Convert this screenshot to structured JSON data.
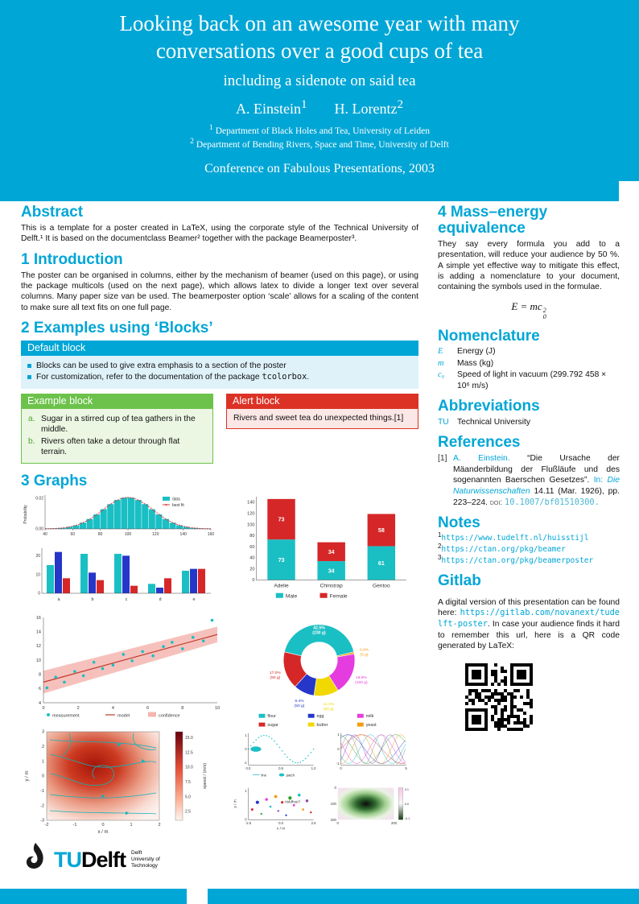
{
  "poster": {
    "header": {
      "title": "Looking back on an awesome year with many conversations over a good cups of tea",
      "subtitle": "including a sidenote on said tea",
      "author1": "A. Einstein",
      "author1_mark": "1",
      "author2": "H. Lorentz",
      "author2_mark": "2",
      "affil1_mark": "1",
      "affil1": "Department of Black Holes and Tea, University of Leiden",
      "affil2_mark": "2",
      "affil2": "Department of Bending Rivers, Space and Time, University of Delft",
      "conference": "Conference on Fabulous Presentations, 2003"
    },
    "abstract": {
      "title": "Abstract",
      "body": "This is a template for a poster created in LaTeX, using the corporate style of the Technical University of Delft.¹ It is based on the documentclass Beamer² together with the package Beamerposter³."
    },
    "introduction": {
      "title": "1 Introduction",
      "body": "The poster can be organised in columns, either by the mechanism of beamer (used on this page), or using the package multicols (used on the next page), which allows latex to divide a longer text over several columns. Many paper size van be used. The beamerposter option ‘scale’ allows for a scaling of the content to make sure all text fits on one full page."
    },
    "blocks": {
      "title": "2 Examples using ‘Blocks’",
      "default_block": {
        "title": "Default block",
        "item1": "Blocks can be used to give extra emphasis to a section of the poster",
        "item2_text": "For customization, refer to the documentation of the package ",
        "item2_code": "tcolorbox",
        "item2_suffix": "."
      },
      "example_block": {
        "title": "Example block",
        "item_a_label": "a.",
        "item_a": "Sugar in a stirred cup of tea gathers in the middle.",
        "item_b_label": "b.",
        "item_b": "Rivers often take a detour through flat terrain."
      },
      "alert_block": {
        "title": "Alert block",
        "body": "Rivers and sweet tea do unexpected things.[1]"
      }
    },
    "graphs": {
      "title": "3 Graphs"
    },
    "mass_energy": {
      "title": "4 Mass–energy equivalence",
      "body": "They say every formula you add to a presentation, will reduce your audience by 50 %. A simple yet effective way to mitigate this effect, is adding a nomenclature to your document, containing the symbols used in the formulae.",
      "formula_lhs": "E = mc",
      "formula_sup": "2",
      "formula_sub": "0"
    },
    "nomenclature": {
      "title": "Nomenclature",
      "rows": [
        {
          "symbol": "E",
          "definition": "Energy (J)"
        },
        {
          "symbol": "m",
          "definition": "Mass (kg)"
        },
        {
          "symbol": "c₀",
          "definition": "Speed of light in vacuum (299.792 458 × 10⁶ m/s)"
        }
      ]
    },
    "abbreviations": {
      "title": "Abbreviations",
      "rows": [
        {
          "abbr": "TU",
          "definition": "Technical University"
        }
      ]
    },
    "references": {
      "title": "References",
      "entries": [
        {
          "label": "[1]",
          "author": "A. Einstein.",
          "work": "“Die Ursache der Mäanderbildung der Flußläufe und des sogenannten Baerschen Gesetzes”.",
          "in_word": "In:",
          "journal": "Die Naturwissenschaften",
          "detail": "14.11 (Mar. 1926), pp. 223–224.",
          "doi_label": "doi:",
          "doi": "10.1007/bf01510300."
        }
      ]
    },
    "notes": {
      "title": "Notes",
      "items": [
        {
          "marker": "1",
          "url": "https://www.tudelft.nl/huisstijl"
        },
        {
          "marker": "2",
          "url": "https://ctan.org/pkg/beamer"
        },
        {
          "marker": "3",
          "url": "https://ctan.org/pkg/beamerposter"
        }
      ]
    },
    "gitlab": {
      "title": "Gitlab",
      "text_before": "A digital version of this presentation can be found here: ",
      "url": "https://gitlab.com/novanext/tudelft-poster",
      "text_after": ". In case your audience finds it hard to remember this url, here is a QR code generated by LaTeX:"
    },
    "logo": {
      "tu": "TU",
      "delft": "Delft",
      "tagline1": "Delft",
      "tagline2": "University of",
      "tagline3": "Technology"
    },
    "theme": {
      "accent": "#00A6D6",
      "green": "#6CC24A",
      "red": "#DC3226"
    }
  },
  "chart_data": [
    {
      "id": "histogram",
      "type": "bar",
      "ylabel": "Probability",
      "x_ticks": [
        40,
        60,
        80,
        100,
        120,
        140,
        160
      ],
      "y_ticks": [
        "0.00",
        "0.02"
      ],
      "legend": [
        "data",
        "best fit"
      ],
      "bin_start": 40,
      "bin_width": 5,
      "values": [
        0.0001,
        0.0003,
        0.0006,
        0.0013,
        0.0023,
        0.004,
        0.0064,
        0.0094,
        0.0128,
        0.0161,
        0.0188,
        0.0203,
        0.0203,
        0.0188,
        0.0161,
        0.0128,
        0.0094,
        0.0064,
        0.004,
        0.0023,
        0.0013,
        0.0006,
        0.0003,
        0.0001
      ],
      "mean": 100,
      "sigma": 18,
      "fit_peak": 0.0205,
      "ymax": 0.022,
      "colors": {
        "data": "#1abfc4",
        "fit": "#d62728"
      }
    },
    {
      "id": "grouped_bars",
      "type": "bar",
      "categories": [
        "a",
        "b",
        "c",
        "d",
        "e"
      ],
      "series": [
        {
          "name": "series1",
          "color": "#1abfc4",
          "values": [
            15,
            21,
            21,
            5,
            12
          ]
        },
        {
          "name": "series2",
          "color": "#2536c9",
          "values": [
            22,
            11,
            20,
            3,
            13
          ]
        },
        {
          "name": "series3",
          "color": "#d62728",
          "values": [
            8,
            7,
            4,
            8,
            13
          ]
        }
      ],
      "y_ticks": [
        0,
        10,
        20
      ],
      "ymax": 24
    },
    {
      "id": "penguins",
      "type": "bar",
      "stacked": true,
      "categories": [
        "Adelie",
        "Chinstrap",
        "Gentoo"
      ],
      "series": [
        {
          "name": "Male",
          "color": "#1abfc4",
          "values": [
            73,
            34,
            61
          ]
        },
        {
          "name": "Female",
          "color": "#d62728",
          "values": [
            73,
            34,
            58
          ]
        }
      ],
      "y_ticks": [
        0,
        20,
        40,
        60,
        80,
        100,
        120,
        140
      ],
      "ymax": 150
    },
    {
      "id": "regression",
      "type": "scatter",
      "xlim": [
        0,
        10
      ],
      "ylim": [
        4,
        16
      ],
      "x_ticks": [
        0,
        2,
        4,
        6,
        8,
        10
      ],
      "y_ticks": [
        4,
        6,
        8,
        10,
        12,
        14,
        16
      ],
      "legend": [
        "measurement",
        "model",
        "confidence"
      ],
      "points": [
        [
          0.2,
          6.1
        ],
        [
          0.7,
          7.6
        ],
        [
          1.2,
          6.9
        ],
        [
          1.8,
          8.4
        ],
        [
          2.3,
          7.8
        ],
        [
          2.9,
          9.7
        ],
        [
          3.4,
          8.8
        ],
        [
          4.0,
          9.3
        ],
        [
          4.6,
          10.8
        ],
        [
          5.1,
          9.9
        ],
        [
          5.7,
          11.2
        ],
        [
          6.3,
          10.6
        ],
        [
          6.9,
          11.9
        ],
        [
          7.4,
          12.5
        ],
        [
          8.0,
          11.6
        ],
        [
          8.6,
          13.2
        ],
        [
          9.2,
          12.7
        ],
        [
          9.7,
          15.6
        ]
      ],
      "model": [
        [
          0,
          6.9
        ],
        [
          10,
          13.6
        ]
      ],
      "band_halfwidth_start": 1.6,
      "band_halfwidth_end": 1.1,
      "colors": {
        "points": "#1abfc4",
        "line": "#c0392b",
        "band": "#f4b6b0"
      }
    },
    {
      "id": "ingredients",
      "type": "pie",
      "slices": [
        {
          "label": "flour",
          "pct": 42.5,
          "grams": 230,
          "color": "#1abfc4"
        },
        {
          "label": "yeast",
          "pct": 0.9,
          "grams": 5,
          "color": "#f39c12"
        },
        {
          "label": "milk",
          "pct": 18.9,
          "grams": 100,
          "color": "#e53ce0"
        },
        {
          "label": "butter",
          "pct": 11.3,
          "grams": 60,
          "color": "#f1d800"
        },
        {
          "label": "egg",
          "pct": 9.4,
          "grams": 50,
          "color": "#2536c9"
        },
        {
          "label": "sugar",
          "pct": 17.0,
          "grams": 90,
          "color": "#d62728"
        }
      ],
      "legend": [
        "flour",
        "sugar",
        "egg",
        "butter",
        "milk",
        "yeast"
      ]
    },
    {
      "id": "streamplot",
      "type": "heatmap",
      "xlabel": "x / m",
      "ylabel": "y / m",
      "x_ticks": [
        -2,
        -1,
        0,
        1,
        2
      ],
      "y_ticks": [
        3,
        2,
        1,
        0,
        -1,
        -2,
        -3
      ],
      "colorbar_label": "speed / (m/s)",
      "colorbar_ticks": [
        "15.0",
        "12.5",
        "10.0",
        "7.5",
        "5.0",
        "2.5"
      ]
    },
    {
      "id": "mini_line",
      "type": "line",
      "x_ticks": [
        "0.0",
        "0.5",
        "1.0"
      ],
      "y_ticks": [
        1,
        0,
        -1
      ],
      "legend": [
        "line",
        "patch"
      ],
      "color": "#1abfc4"
    },
    {
      "id": "mini_weave",
      "type": "line",
      "x_ticks": [
        0,
        5
      ],
      "y_ticks": [
        1,
        0,
        -1
      ],
      "colors": [
        "#d62728",
        "#2536c9",
        "#2ca02c",
        "#e53ce0",
        "#1abfc4",
        "#f39c12",
        "#8e44ad",
        "#7f8c8d"
      ]
    },
    {
      "id": "mini_scatter",
      "type": "scatter",
      "xlabel": "x / m",
      "ylabel": "y / m",
      "x_ticks": [
        "-2.5",
        "0.0",
        "2.5"
      ],
      "y_ticks": [
        1,
        0
      ],
      "annotation": "Veldfout?",
      "colors": [
        "#d62728",
        "#2536c9",
        "#2ca02c",
        "#e53ce0",
        "#1abfc4",
        "#f39c12",
        "#8e44ad"
      ],
      "points": [
        [
          -2.2,
          0.3,
          0,
          1.6
        ],
        [
          -1.8,
          0.55,
          1,
          2.2
        ],
        [
          -1.5,
          0.15,
          2,
          1.2
        ],
        [
          -1.1,
          0.65,
          3,
          1.8
        ],
        [
          -0.8,
          0.4,
          4,
          1.4
        ],
        [
          -0.4,
          0.75,
          5,
          2.0
        ],
        [
          -0.2,
          0.25,
          6,
          1.3
        ],
        [
          0.1,
          0.55,
          0,
          1.7
        ],
        [
          0.4,
          0.1,
          1,
          1.2
        ],
        [
          0.7,
          0.7,
          2,
          2.3
        ],
        [
          1.0,
          0.45,
          3,
          1.5
        ],
        [
          1.4,
          0.8,
          4,
          1.9
        ],
        [
          1.7,
          0.3,
          5,
          1.4
        ],
        [
          2.0,
          0.6,
          6,
          1.8
        ],
        [
          2.3,
          0.2,
          0,
          1.3
        ]
      ]
    },
    {
      "id": "mini_image",
      "type": "heatmap",
      "x_ticks": [
        0,
        200
      ],
      "y_ticks": [
        0,
        100,
        200
      ],
      "colorbar_ticks": [
        "0.1",
        "0.0",
        "-0.1"
      ]
    }
  ]
}
